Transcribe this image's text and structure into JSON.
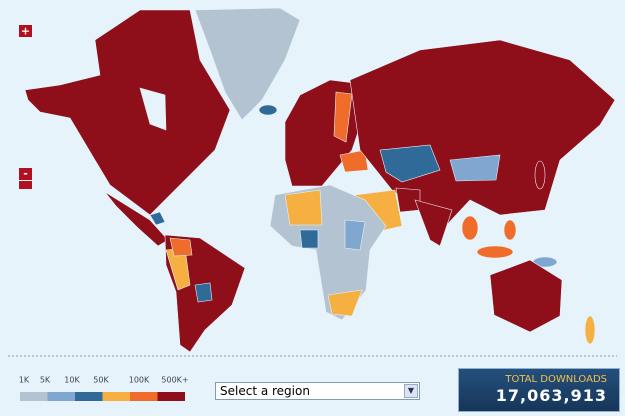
{
  "zoom": {
    "in": "+",
    "out": "-"
  },
  "legend": {
    "labels": [
      "1K",
      "5K",
      "10K",
      "50K",
      "100K",
      "500K+"
    ],
    "colors": [
      "#b3c3d1",
      "#7fa7cf",
      "#2f6a99",
      "#f5b041",
      "#ef6c2a",
      "#8e0e1a"
    ]
  },
  "region_select": "Select a region",
  "total": {
    "label": "TOTAL DOWNLOADS",
    "value": "17,063,913"
  }
}
